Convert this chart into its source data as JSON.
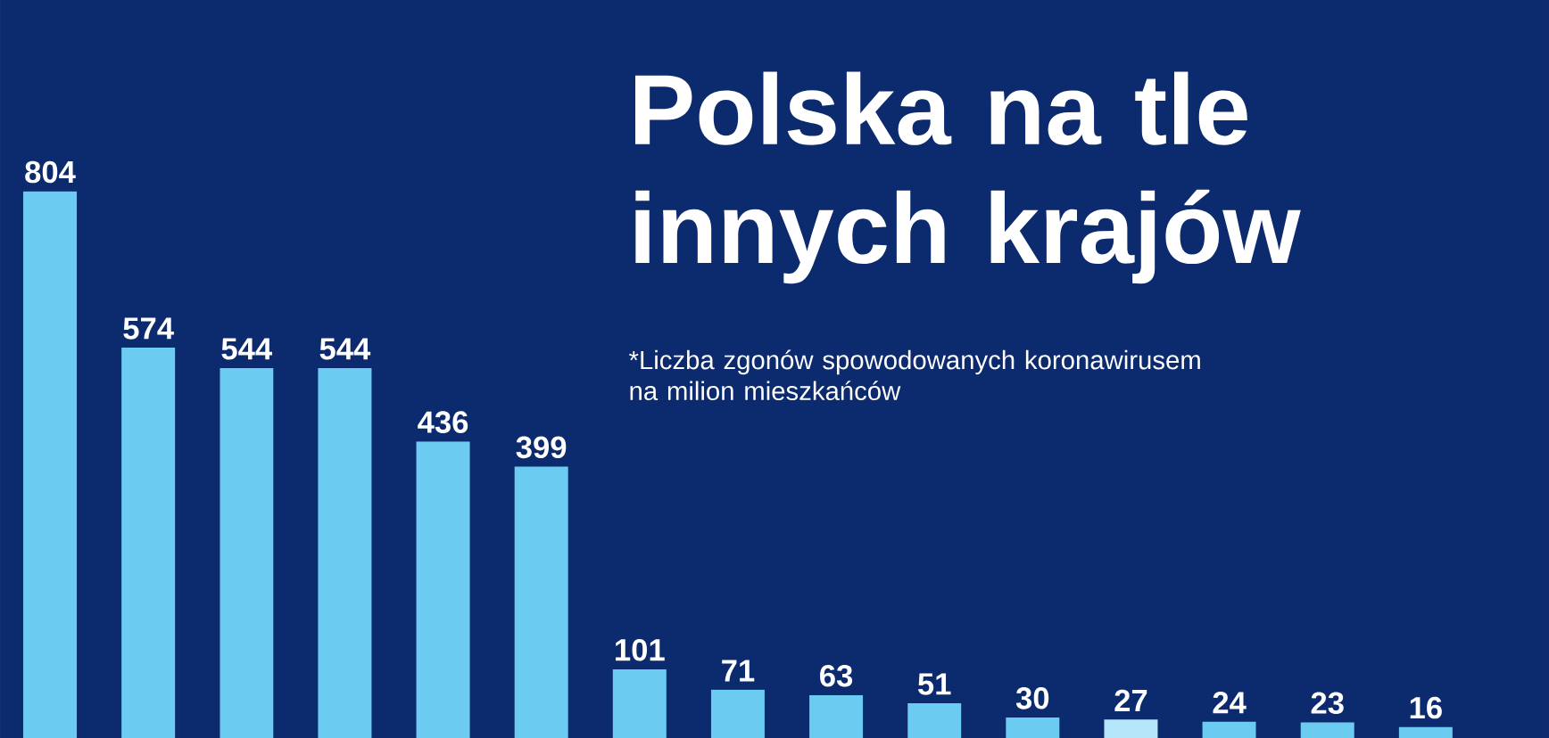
{
  "chart_data": {
    "type": "bar",
    "title": "Polska na tle innych krajów",
    "subtitle": "*Liczba zgonów spowodowanych koronawirusem na milion mieszkańców",
    "categories": [
      null,
      null,
      null,
      null,
      null,
      null,
      null,
      null,
      null,
      null,
      null,
      null,
      null,
      null,
      null
    ],
    "values": [
      804,
      574,
      544,
      544,
      436,
      399,
      101,
      71,
      63,
      51,
      30,
      27,
      24,
      23,
      16
    ],
    "colors": [
      "#6ccbf0",
      "#6ccbf0",
      "#6ccbf0",
      "#6ccbf0",
      "#6ccbf0",
      "#6ccbf0",
      "#6ccbf0",
      "#6ccbf0",
      "#6ccbf0",
      "#6ccbf0",
      "#6ccbf0",
      "#b5e6fa",
      "#6ccbf0",
      "#6ccbf0",
      "#6ccbf0"
    ],
    "data_labels": true
  }
}
